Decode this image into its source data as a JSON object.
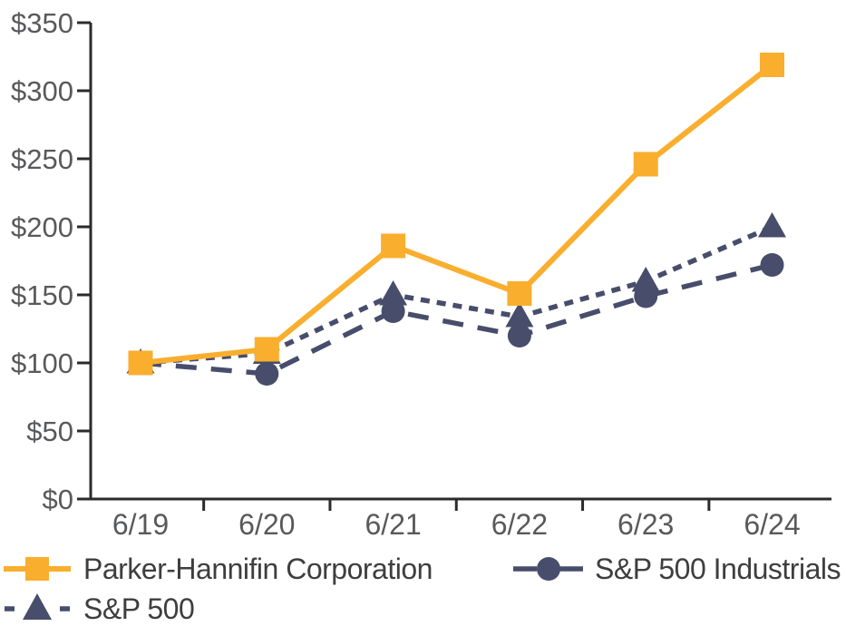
{
  "chart_data": {
    "type": "line",
    "title": "",
    "categories": [
      "6/19",
      "6/20",
      "6/21",
      "6/22",
      "6/23",
      "6/24"
    ],
    "series": [
      {
        "name": "Parker-Hannifin Corporation",
        "marker": "square",
        "line_style": "solid",
        "color": "#F9AE2E",
        "values": [
          100,
          110,
          186,
          151,
          246,
          319
        ]
      },
      {
        "name": "S&P 500",
        "marker": "triangle",
        "line_style": "dotted",
        "color": "#474D6B",
        "values": [
          100,
          107,
          150,
          134,
          160,
          200
        ]
      },
      {
        "name": "S&P 500 Industrials",
        "marker": "circle",
        "line_style": "dashed",
        "color": "#474D6B",
        "values": [
          100,
          92,
          138,
          120,
          149,
          172
        ]
      }
    ],
    "y_axis": {
      "tick_labels": [
        "$350",
        "$300",
        "$250",
        "$200",
        "$150",
        "$100",
        "$50",
        "$0"
      ],
      "tick_values": [
        350,
        300,
        250,
        200,
        150,
        100,
        50,
        0
      ],
      "min": 0,
      "max": 350
    },
    "x_axis": {
      "tick_labels": [
        "6/19",
        "6/20",
        "6/21",
        "6/22",
        "6/23",
        "6/24"
      ]
    },
    "grid": false,
    "legend_position": "bottom"
  },
  "colors": {
    "axis_line": "#2B2B2B",
    "tick_label": "#58595B",
    "legend_text": "#3E3E40"
  }
}
